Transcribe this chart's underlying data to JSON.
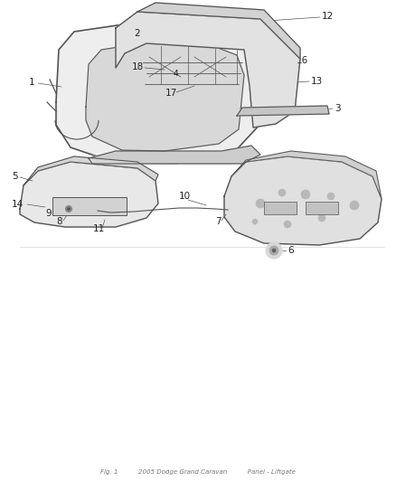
{
  "background_color": "#ffffff",
  "fig_width": 4.38,
  "fig_height": 5.33,
  "dpi": 100,
  "line_color": "#555555",
  "text_color": "#222222",
  "label_fontsize": 7.5,
  "footer_text": "Fig. 1          2005 Dodge Grand Caravan          Panel - Liftgate"
}
